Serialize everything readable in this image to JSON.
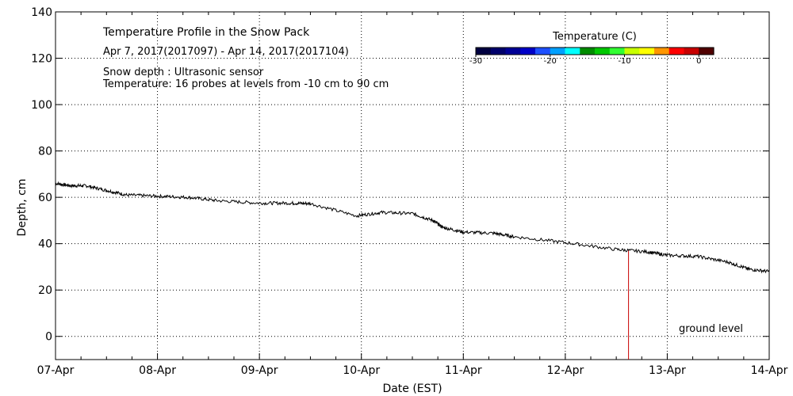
{
  "chart_data": {
    "type": "line",
    "title": "Temperature Profile in the Snow Pack",
    "subtitle": "Apr  7, 2017(2017097) - Apr 14, 2017(2017104)",
    "annotations": [
      "Snow depth : Ultrasonic sensor",
      "Temperature: 16 probes at levels from -10 cm to 90 cm"
    ],
    "ground_label": "ground level",
    "xlabel": "Date (EST)",
    "ylabel": "Depth, cm",
    "ylim": [
      -10,
      140
    ],
    "xlim": [
      0,
      7
    ],
    "grid": true,
    "y_ticks": [
      "140",
      "120",
      "100",
      "80",
      "60",
      "40",
      "20",
      "0"
    ],
    "x_ticks": [
      "07-Apr",
      "08-Apr",
      "09-Apr",
      "10-Apr",
      "11-Apr",
      "12-Apr",
      "13-Apr",
      "14-Apr"
    ],
    "colorbar": {
      "title": "Temperature (C)",
      "tick_labels": [
        "-30",
        "-20",
        "-10",
        "0"
      ],
      "tick_values": [
        -30,
        -20,
        -10,
        0
      ],
      "range": [
        -30,
        2
      ],
      "colors": [
        "#000040",
        "#00006b",
        "#000096",
        "#0000c8",
        "#1e50ff",
        "#00a0ff",
        "#00ffff",
        "#008c00",
        "#00c800",
        "#32ff32",
        "#c8ff00",
        "#ffff00",
        "#ff9600",
        "#ff0000",
        "#c80000",
        "#500000"
      ]
    },
    "series": [
      {
        "name": "Snow depth",
        "color": "#000000",
        "x": [
          0,
          0.15,
          0.3,
          0.5,
          0.7,
          1.0,
          1.3,
          1.6,
          2.0,
          2.3,
          2.5,
          2.95,
          3.2,
          3.5,
          3.7,
          3.8,
          4.0,
          4.3,
          4.5,
          5.0,
          5.5,
          5.8,
          6.0,
          6.3,
          6.6,
          6.8,
          7.0
        ],
        "y": [
          66,
          65,
          65,
          63,
          61,
          60.5,
          60,
          58.5,
          57.5,
          57.5,
          57.3,
          52,
          53.5,
          53,
          50,
          47,
          45,
          44.5,
          43,
          40.5,
          37.5,
          36.5,
          35,
          34.5,
          32,
          29,
          28
        ]
      },
      {
        "name": "Temperature probe",
        "color": "#c80000",
        "x": [
          5.62,
          5.62
        ],
        "y": [
          -10,
          37
        ]
      }
    ]
  }
}
